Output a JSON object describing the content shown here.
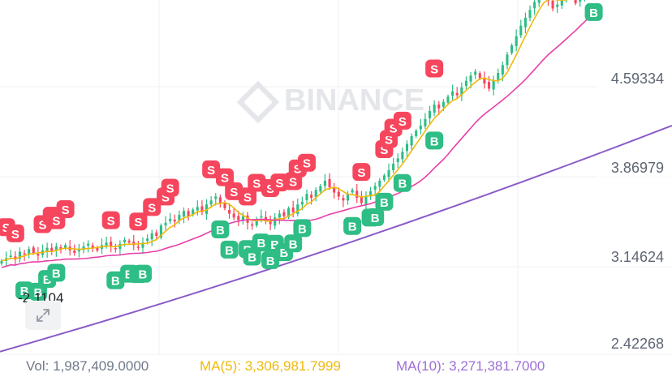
{
  "watermark": "BINANCE",
  "colors": {
    "up": "#2ebd85",
    "down": "#f6465d",
    "ma5": "#f0b90b",
    "ma10": "#e83fa8",
    "ma_long": "#8a5cc8",
    "grid": "#eef0f3",
    "axis_text": "#5e6673"
  },
  "min_label": "-2.1104",
  "legend": {
    "vol": "Vol: 1,987,409.0000",
    "ma5": "MA(5): 3,306,981.7999",
    "ma10": "MA(10): 3,271,381.7000"
  },
  "chart_data": {
    "type": "candlestick",
    "price_axis": {
      "ticks": [
        "4.59334",
        "3.86979",
        "3.14624",
        "2.42268"
      ],
      "ylim": [
        2.3,
        5.18
      ],
      "side": "right",
      "scale": "linear"
    },
    "grid": true,
    "markers": {
      "buy": "B",
      "sell": "S"
    },
    "close_seed": [
      3.01,
      3.03,
      3.05,
      3.02,
      3.08,
      3.06,
      3.1,
      3.07,
      3.05,
      3.09,
      3.11,
      3.08,
      3.12,
      3.1,
      3.13,
      3.09,
      3.07,
      3.1,
      3.12,
      3.14,
      3.11,
      3.09,
      3.13,
      3.15,
      3.12,
      3.1,
      3.14,
      3.17,
      3.15,
      3.13,
      3.11,
      3.15,
      3.18,
      3.22,
      3.2,
      3.28,
      3.3,
      3.33,
      3.31,
      3.36,
      3.39,
      3.35,
      3.4,
      3.42,
      3.38,
      3.44,
      3.47,
      3.5,
      3.45,
      3.41,
      3.37,
      3.34,
      3.32,
      3.35,
      3.3,
      3.28,
      3.33,
      3.35,
      3.31,
      3.29,
      3.34,
      3.37,
      3.35,
      3.41,
      3.38,
      3.44,
      3.46,
      3.52,
      3.49,
      3.55,
      3.58,
      3.62,
      3.57,
      3.53,
      3.5,
      3.47,
      3.52,
      3.55,
      3.49,
      3.45,
      3.5,
      3.54,
      3.58,
      3.62,
      3.66,
      3.7,
      3.75,
      3.79,
      3.84,
      3.9,
      3.96,
      4.0,
      4.04,
      4.09,
      4.15,
      4.2,
      4.17,
      4.22,
      4.26,
      4.3,
      4.27,
      4.33,
      4.38,
      4.42,
      4.45,
      4.4,
      4.36,
      4.32,
      4.38,
      4.44,
      4.5,
      4.58,
      4.65,
      4.72,
      4.8,
      4.86,
      4.92,
      4.98,
      5.03,
      5.07,
      4.99,
      4.93,
      4.96,
      5.02,
      5.08,
      5.04,
      4.97,
      5.01,
      5.06,
      5.1,
      5.14,
      5.18
    ],
    "ma_long": {
      "x0_index": 0,
      "start": 2.32,
      "end": 4.04
    },
    "sell_marker_indices": [
      1,
      3,
      9,
      11,
      12,
      14,
      24,
      30,
      33,
      36,
      37,
      46,
      49,
      51,
      54,
      56,
      59,
      61,
      64,
      65,
      67,
      79,
      84,
      85,
      86,
      88,
      95
    ],
    "buy_marker_indices": [
      5,
      8,
      10,
      12,
      25,
      28,
      30,
      31,
      48,
      50,
      54,
      55,
      57,
      59,
      60,
      62,
      64,
      66,
      77,
      81,
      82,
      84,
      88,
      95,
      130
    ]
  }
}
